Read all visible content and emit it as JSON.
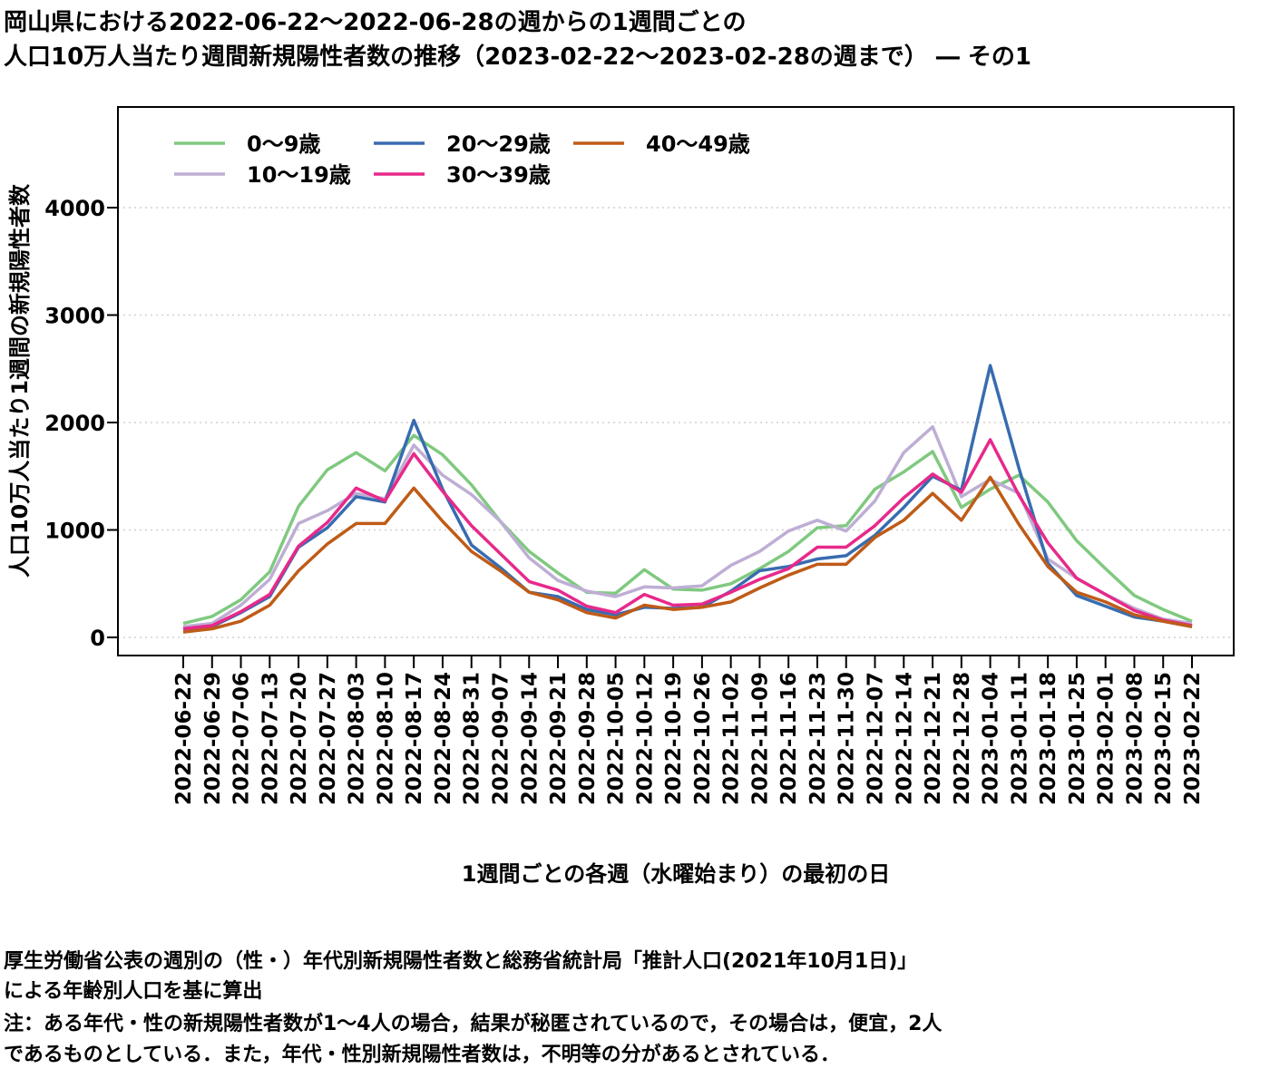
{
  "title": {
    "line1": "岡山県における2022-06-22～2022-06-28の週からの1週間ごとの",
    "line2": "人口10万人当たり週間新規陽性者数の推移（2023-02-22～2023-02-28の週まで） ― その1"
  },
  "notes": {
    "line1": "厚生労働省公表の週別の（性・）年代別新規陽性者数と総務省統計局「推計人口(2021年10月1日)」",
    "line2": "による年齢別人口を基に算出",
    "line3": "注：ある年代・性の新規陽性者数が1～4人の場合，結果が秘匿されているので，その場合は，便宜，2人",
    "line4": "であるものとしている．また，年代・性別新規陽性者数は，不明等の分があるとされている．"
  },
  "chart_data": {
    "type": "line",
    "xlabel": "1週間ごとの各週（水曜始まり）の最初の日",
    "ylabel": "人口10万人当たり1週間の新規陽性者数",
    "ylim": [
      0,
      4900
    ],
    "yticks": [
      0,
      1000,
      2000,
      3000,
      4000
    ],
    "grid": "horizontal dotted",
    "legend_position": "top-left",
    "categories": [
      "2022-06-22",
      "2022-06-29",
      "2022-07-06",
      "2022-07-13",
      "2022-07-20",
      "2022-07-27",
      "2022-08-03",
      "2022-08-10",
      "2022-08-17",
      "2022-08-24",
      "2022-08-31",
      "2022-09-07",
      "2022-09-14",
      "2022-09-21",
      "2022-09-28",
      "2022-10-05",
      "2022-10-12",
      "2022-10-19",
      "2022-10-26",
      "2022-11-02",
      "2022-11-09",
      "2022-11-16",
      "2022-11-23",
      "2022-11-30",
      "2022-12-07",
      "2022-12-14",
      "2022-12-21",
      "2022-12-28",
      "2023-01-04",
      "2023-01-11",
      "2023-01-18",
      "2023-01-25",
      "2023-02-01",
      "2023-02-08",
      "2023-02-15",
      "2023-02-22"
    ],
    "series": [
      {
        "name": "0～9歳",
        "color": "#7fc97f",
        "values": [
          130,
          195,
          350,
          610,
          1220,
          1560,
          1720,
          1550,
          1880,
          1700,
          1420,
          1080,
          800,
          600,
          420,
          410,
          630,
          450,
          440,
          500,
          640,
          800,
          1020,
          1040,
          1380,
          1540,
          1730,
          1210,
          1380,
          1510,
          1260,
          900,
          640,
          390,
          260,
          150
        ]
      },
      {
        "name": "10～19歳",
        "color": "#beaed4",
        "values": [
          100,
          130,
          300,
          540,
          1060,
          1180,
          1340,
          1290,
          1790,
          1510,
          1330,
          1080,
          740,
          530,
          430,
          380,
          470,
          460,
          480,
          670,
          800,
          990,
          1090,
          990,
          1270,
          1720,
          1960,
          1310,
          1470,
          1340,
          730,
          550,
          400,
          270,
          170,
          130
        ]
      },
      {
        "name": "20～29歳",
        "color": "#386cb0",
        "values": [
          80,
          100,
          230,
          380,
          840,
          1020,
          1310,
          1260,
          2020,
          1380,
          860,
          650,
          420,
          380,
          260,
          210,
          280,
          270,
          280,
          430,
          620,
          660,
          730,
          760,
          950,
          1210,
          1500,
          1370,
          2530,
          1570,
          690,
          390,
          290,
          190,
          150,
          100
        ]
      },
      {
        "name": "30～39歳",
        "color": "#e7298a",
        "values": [
          80,
          110,
          240,
          400,
          850,
          1070,
          1390,
          1270,
          1710,
          1360,
          1040,
          780,
          520,
          440,
          290,
          230,
          400,
          300,
          310,
          420,
          540,
          640,
          840,
          840,
          1040,
          1300,
          1520,
          1350,
          1840,
          1320,
          880,
          550,
          400,
          250,
          160,
          110
        ]
      },
      {
        "name": "40～49歳",
        "color": "#bf5b17",
        "values": [
          50,
          80,
          150,
          300,
          620,
          870,
          1060,
          1060,
          1390,
          1080,
          800,
          620,
          420,
          350,
          230,
          180,
          300,
          260,
          280,
          330,
          460,
          580,
          680,
          680,
          930,
          1090,
          1340,
          1090,
          1490,
          1050,
          660,
          420,
          330,
          210,
          150,
          100
        ]
      }
    ]
  }
}
